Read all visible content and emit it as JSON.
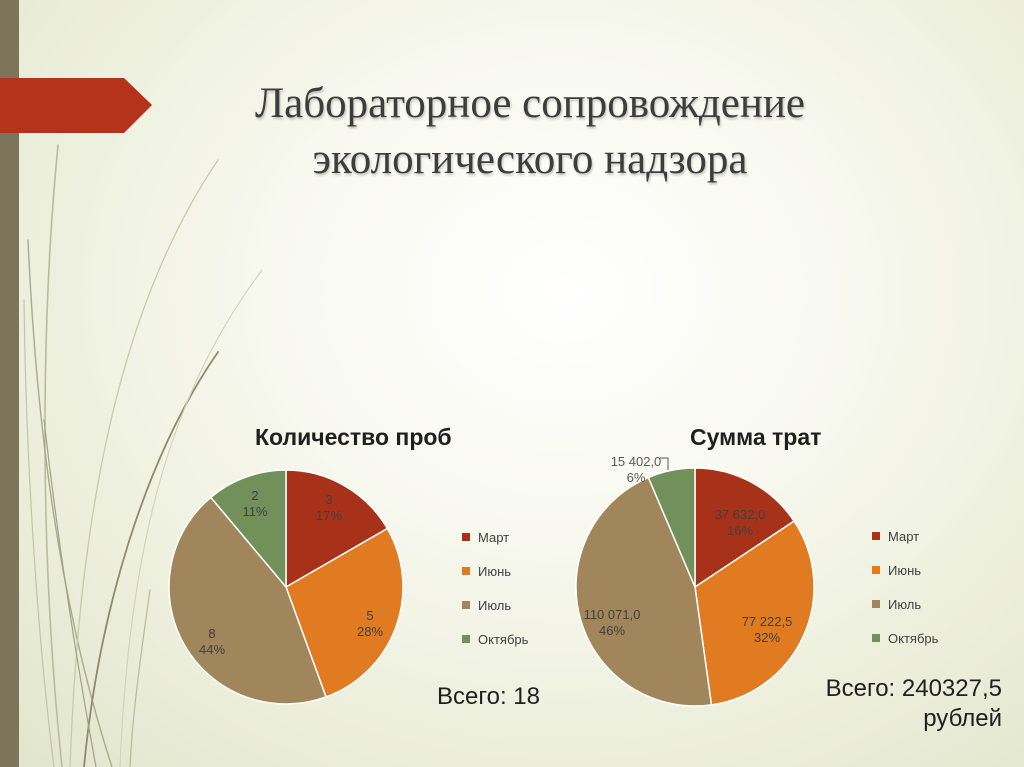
{
  "slide": {
    "title_lines": [
      "Лабораторное сопровождение",
      "экологического надзора"
    ]
  },
  "colors": {
    "accent_tab": "#b5331a",
    "side_bar": "#7d7559",
    "march": "#a8311a",
    "june": "#e07b21",
    "july": "#a0865a",
    "october": "#72905a"
  },
  "chart_data": [
    {
      "type": "pie",
      "title": "Количество проб",
      "categories": [
        "Март",
        "Июнь",
        "Июль",
        "Октябрь"
      ],
      "values": [
        3,
        5,
        8,
        2
      ],
      "percent_labels": [
        "17%",
        "28%",
        "44%",
        "11%"
      ],
      "value_labels": [
        "3",
        "5",
        "8",
        "2"
      ],
      "legend_position": "right",
      "total_text": [
        "Всего: 18"
      ]
    },
    {
      "type": "pie",
      "title": "Сумма трат",
      "categories": [
        "Март",
        "Июнь",
        "Июль",
        "Октябрь"
      ],
      "values": [
        37632.0,
        77222.5,
        110071.0,
        15402.0
      ],
      "percent_labels": [
        "16%",
        "32%",
        "46%",
        "6%"
      ],
      "value_labels": [
        "37 632,0",
        "77 222,5",
        "110 071,0",
        "15 402,0"
      ],
      "legend_position": "right",
      "total_text": [
        "Всего: 240327,5",
        "рублей"
      ]
    }
  ]
}
